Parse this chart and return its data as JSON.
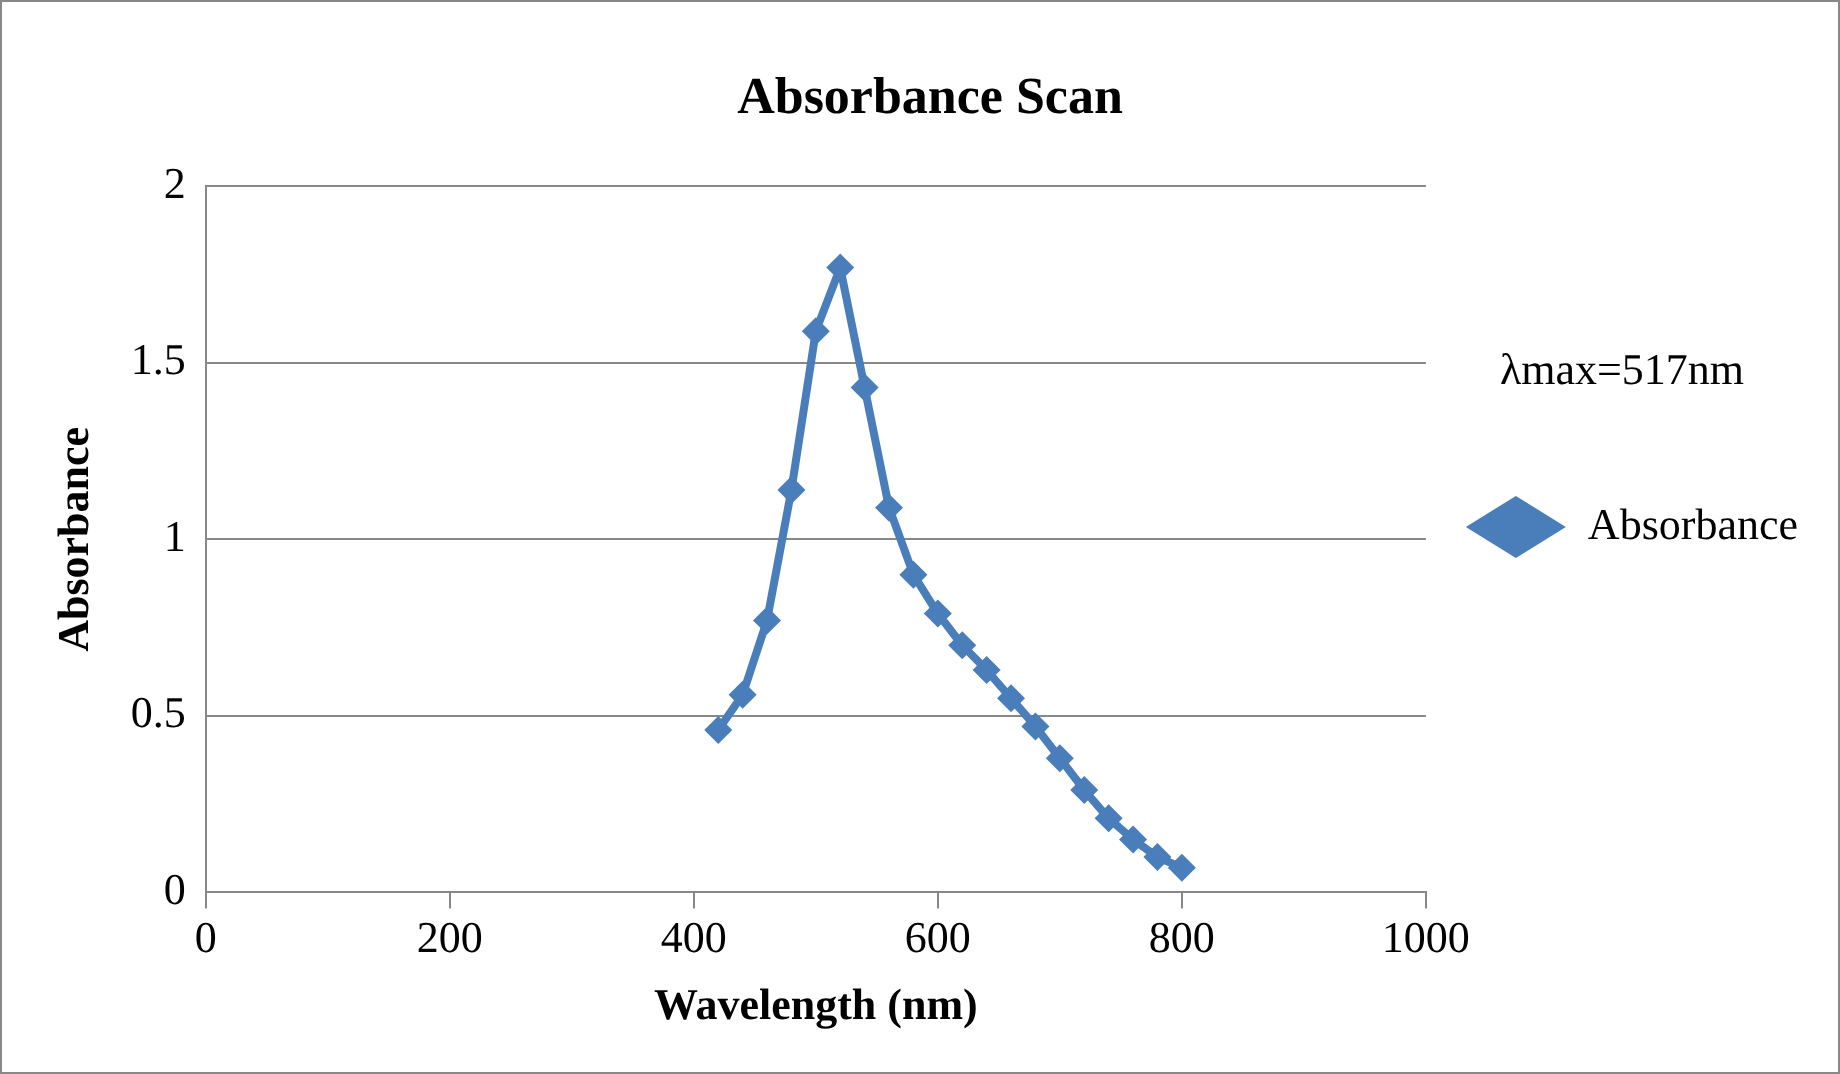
{
  "chart_data": {
    "type": "line",
    "title": "Absorbance Scan",
    "xlabel": "Wavelength (nm)",
    "ylabel": "Absorbance",
    "x": [
      420,
      440,
      460,
      480,
      500,
      520,
      540,
      560,
      580,
      600,
      620,
      640,
      660,
      680,
      700,
      720,
      740,
      760,
      780,
      800
    ],
    "series": [
      {
        "name": "Absorbance",
        "color": "#4a7ebb",
        "values": [
          0.46,
          0.56,
          0.77,
          1.14,
          1.59,
          1.77,
          1.43,
          1.09,
          0.9,
          0.79,
          0.7,
          0.63,
          0.55,
          0.47,
          0.38,
          0.29,
          0.21,
          0.15,
          0.1,
          0.07
        ]
      }
    ],
    "xlim": [
      0,
      1000
    ],
    "xticks": [
      0,
      200,
      400,
      600,
      800,
      1000
    ],
    "ylim": [
      0,
      2
    ],
    "yticks": [
      0,
      0.5,
      1,
      1.5,
      2
    ],
    "grid": "y",
    "legend": "right",
    "marker": "diamond",
    "line_style": "solid",
    "annotations": [
      "λmax=517nm"
    ]
  }
}
